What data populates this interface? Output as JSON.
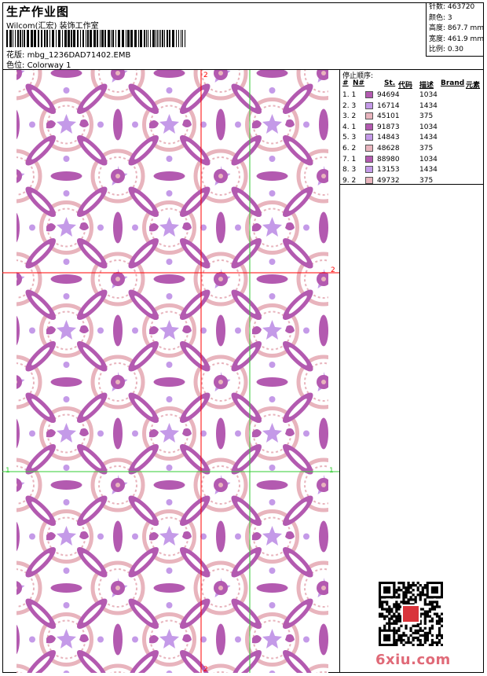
{
  "header": {
    "title": "生产作业图",
    "company": "Wilcom(汇宏) 装饰工作室",
    "design_label": "花版:",
    "design_name": "mbg_1236DAD71402.EMB",
    "colorway_label": "色位:",
    "colorway_name": "Colorway 1"
  },
  "info": {
    "stitches_label": "针数:",
    "stitches": "463720",
    "colors_label": "颜色:",
    "colors": "3",
    "height_label": "高度:",
    "height": "867.7 mm",
    "width_label": "宽度:",
    "width": "461.9 mm",
    "scale_label": "比例:",
    "scale": "0.30"
  },
  "stops": {
    "title": "停止顺序:",
    "headers": {
      "num": "#",
      "n": "N#",
      "st": "St.",
      "code": "代码",
      "desc": "描述",
      "brand": "Brand",
      "element": "元素"
    },
    "rows": [
      {
        "stop": "1. 1",
        "code": "94694",
        "desc": "1034",
        "color": "#b35ab0"
      },
      {
        "stop": "2. 3",
        "code": "16714",
        "desc": "1434",
        "color": "#c49ae8"
      },
      {
        "stop": "3. 2",
        "code": "45101",
        "desc": "375",
        "color": "#e8b4bd"
      },
      {
        "stop": "4. 1",
        "code": "91873",
        "desc": "1034",
        "color": "#b35ab0"
      },
      {
        "stop": "5. 3",
        "code": "14843",
        "desc": "1434",
        "color": "#c49ae8"
      },
      {
        "stop": "6. 2",
        "code": "48628",
        "desc": "375",
        "color": "#e8b4bd"
      },
      {
        "stop": "7. 1",
        "code": "88980",
        "desc": "1034",
        "color": "#b35ab0"
      },
      {
        "stop": "8. 3",
        "code": "13153",
        "desc": "1434",
        "color": "#c49ae8"
      },
      {
        "stop": "9. 2",
        "code": "49732",
        "desc": "375",
        "color": "#e8b4bd"
      }
    ]
  },
  "canvas": {
    "marker_1_left": "1",
    "marker_1_right": "1",
    "marker_2_top": "2",
    "marker_2_right": "2",
    "marker_2_bottom": "2",
    "colors": {
      "dark": "#b35ab0",
      "light": "#e8b4bd",
      "violet": "#c49ae8",
      "guide_red": "#ff0000",
      "guide_green": "#33cc33"
    }
  },
  "watermark": "6xiu.com"
}
